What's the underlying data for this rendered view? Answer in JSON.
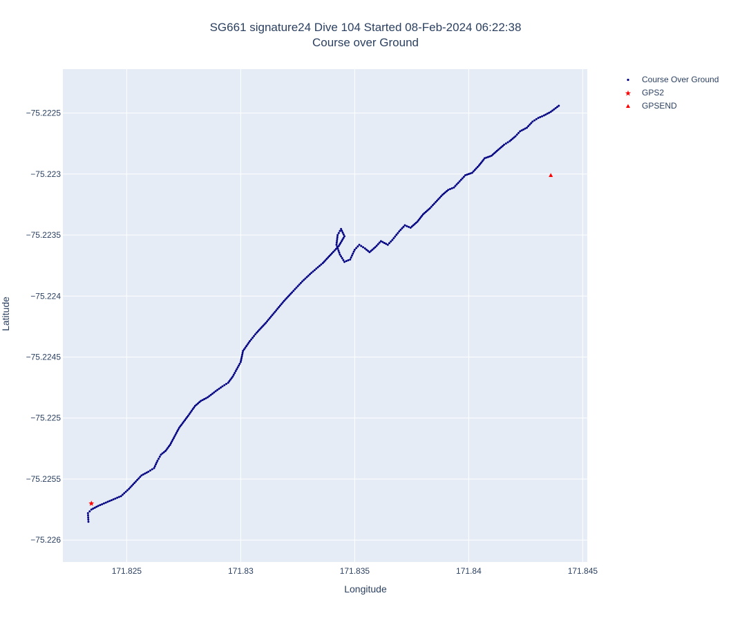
{
  "chart_data": {
    "type": "scatter",
    "title": "SG661 signature24 Dive 104 Started 08-Feb-2024 06:22:38",
    "subtitle": "Course over Ground",
    "xlabel": "Longitude",
    "ylabel": "Latitude",
    "xlim": [
      171.8222,
      171.8452
    ],
    "ylim": [
      -75.22618,
      -75.22214
    ],
    "xticks": [
      171.825,
      171.83,
      171.835,
      171.84,
      171.845
    ],
    "xtick_labels": [
      "171.825",
      "171.83",
      "171.835",
      "171.84",
      "171.845"
    ],
    "yticks": [
      -75.2225,
      -75.223,
      -75.2235,
      -75.224,
      -75.2245,
      -75.225,
      -75.2255,
      -75.226
    ],
    "ytick_labels": [
      "−75.2225",
      "−75.223",
      "−75.2235",
      "−75.224",
      "−75.2245",
      "−75.225",
      "−75.2255",
      "−75.226"
    ],
    "grid": true,
    "legend_position": "top-right, outside plot",
    "series": [
      {
        "name": "Course Over Ground",
        "marker": "dot",
        "color": "#000080",
        "path": [
          [
            171.82332,
            -75.22585
          ],
          [
            171.8233,
            -75.22578
          ],
          [
            171.82345,
            -75.22575
          ],
          [
            171.82375,
            -75.22572
          ],
          [
            171.82425,
            -75.22568
          ],
          [
            171.82475,
            -75.22564
          ],
          [
            171.8251,
            -75.22558
          ],
          [
            171.8254,
            -75.22552
          ],
          [
            171.82565,
            -75.22547
          ],
          [
            171.82595,
            -75.22544
          ],
          [
            171.8262,
            -75.22541
          ],
          [
            171.82635,
            -75.22535
          ],
          [
            171.8265,
            -75.2253
          ],
          [
            171.8267,
            -75.22527
          ],
          [
            171.8269,
            -75.22522
          ],
          [
            171.8271,
            -75.22515
          ],
          [
            171.8273,
            -75.22508
          ],
          [
            171.8277,
            -75.22498
          ],
          [
            171.828,
            -75.2249
          ],
          [
            171.82825,
            -75.22486
          ],
          [
            171.82855,
            -75.22483
          ],
          [
            171.8289,
            -75.22478
          ],
          [
            171.8292,
            -75.22474
          ],
          [
            171.82945,
            -75.22471
          ],
          [
            171.82965,
            -75.22466
          ],
          [
            171.83,
            -75.22454
          ],
          [
            171.8301,
            -75.22445
          ],
          [
            171.8304,
            -75.22437
          ],
          [
            171.8307,
            -75.2243
          ],
          [
            171.8311,
            -75.22422
          ],
          [
            171.8315,
            -75.22413
          ],
          [
            171.8319,
            -75.22404
          ],
          [
            171.83225,
            -75.22397
          ],
          [
            171.8327,
            -75.22388
          ],
          [
            171.8331,
            -75.22381
          ],
          [
            171.8336,
            -75.22373
          ],
          [
            171.834,
            -75.22365
          ],
          [
            171.8343,
            -75.22359
          ],
          [
            171.83455,
            -75.22351
          ],
          [
            171.8344,
            -75.22345
          ],
          [
            171.83425,
            -75.2235
          ],
          [
            171.8342,
            -75.22358
          ],
          [
            171.83435,
            -75.22366
          ],
          [
            171.83455,
            -75.22372
          ],
          [
            171.8348,
            -75.2237
          ],
          [
            171.835,
            -75.22362
          ],
          [
            171.8352,
            -75.22358
          ],
          [
            171.83545,
            -75.22361
          ],
          [
            171.83565,
            -75.22364
          ],
          [
            171.8359,
            -75.2236
          ],
          [
            171.83615,
            -75.22355
          ],
          [
            171.83645,
            -75.22358
          ],
          [
            171.83665,
            -75.22354
          ],
          [
            171.83695,
            -75.22347
          ],
          [
            171.8372,
            -75.22342
          ],
          [
            171.83745,
            -75.22344
          ],
          [
            171.83775,
            -75.22339
          ],
          [
            171.838,
            -75.22333
          ],
          [
            171.8383,
            -75.22328
          ],
          [
            171.83855,
            -75.22323
          ],
          [
            171.83885,
            -75.22317
          ],
          [
            171.8391,
            -75.22313
          ],
          [
            171.83935,
            -75.22311
          ],
          [
            171.8396,
            -75.22306
          ],
          [
            171.83985,
            -75.22301
          ],
          [
            171.84015,
            -75.22299
          ],
          [
            171.84045,
            -75.22293
          ],
          [
            171.8407,
            -75.22287
          ],
          [
            171.841,
            -75.22285
          ],
          [
            171.8413,
            -75.2228
          ],
          [
            171.84155,
            -75.22276
          ],
          [
            171.8418,
            -75.22273
          ],
          [
            171.84205,
            -75.22269
          ],
          [
            171.84225,
            -75.22265
          ],
          [
            171.84255,
            -75.22262
          ],
          [
            171.8428,
            -75.22257
          ],
          [
            171.84305,
            -75.22254
          ],
          [
            171.8433,
            -75.22252
          ],
          [
            171.8436,
            -75.22249
          ],
          [
            171.84395,
            -75.22244
          ]
        ]
      },
      {
        "name": "GPS2",
        "marker": "star",
        "color": "#ff0000",
        "points": [
          [
            171.82345,
            -75.2257
          ]
        ]
      },
      {
        "name": "GPSEND",
        "marker": "triangle-up",
        "color": "#ff0000",
        "points": [
          [
            171.8436,
            -75.22301
          ]
        ]
      }
    ]
  }
}
